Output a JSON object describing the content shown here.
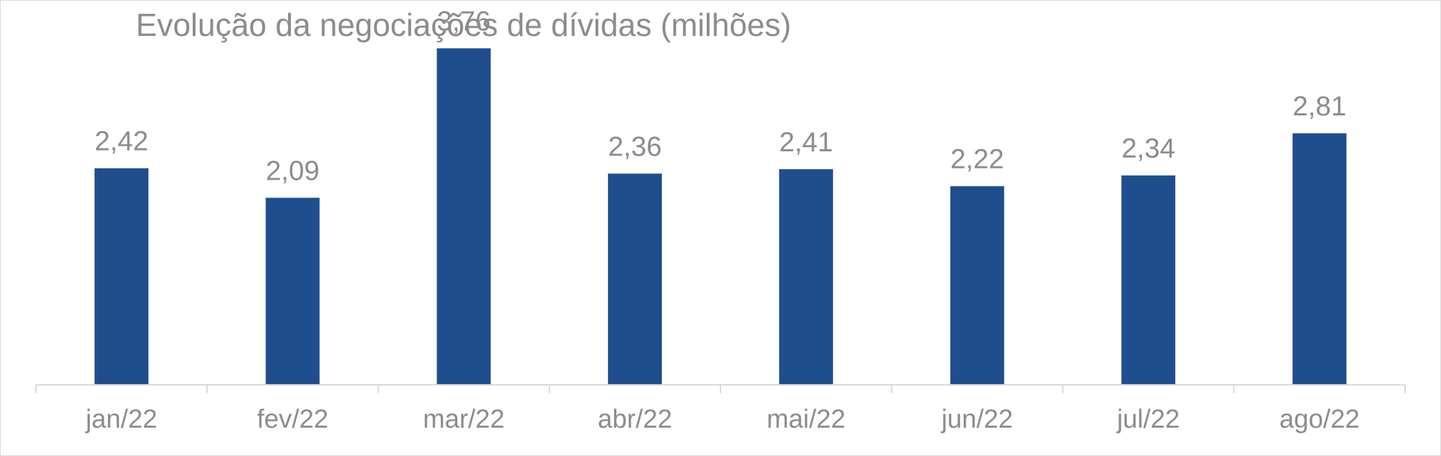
{
  "chart_data": {
    "type": "bar",
    "title": "Evolução da negociações de dívidas (milhões)",
    "xlabel": "",
    "ylabel": "",
    "categories": [
      "jan/22",
      "fev/22",
      "mar/22",
      "abr/22",
      "mai/22",
      "jun/22",
      "jul/22",
      "ago/22"
    ],
    "values": [
      2.42,
      2.09,
      3.76,
      2.36,
      2.41,
      2.22,
      2.34,
      2.81
    ],
    "data_labels": [
      "2,42",
      "2,09",
      "3,76",
      "2,36",
      "2,41",
      "2,22",
      "2,34",
      "2,81"
    ],
    "ylim": [
      0,
      4.3
    ],
    "grid": false,
    "legend": "none",
    "colors": {
      "bar": "#1f4e8f",
      "text": "#8c8c8c",
      "axis": "#d9d9d9"
    }
  }
}
